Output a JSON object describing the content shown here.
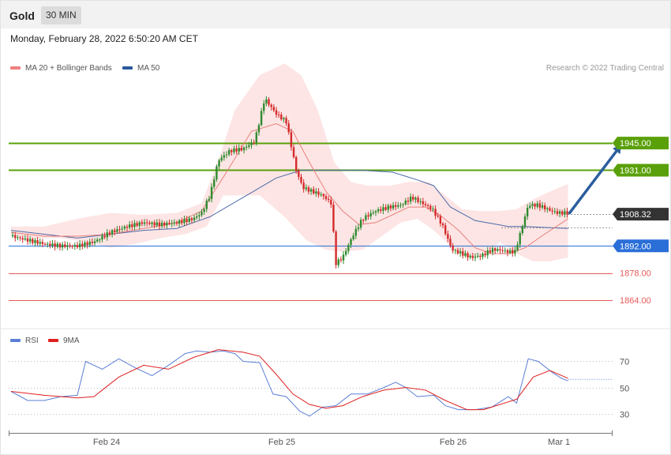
{
  "header": {
    "instrument": "Gold",
    "timeframe": "30 MIN"
  },
  "timestamp": "Monday, February 28, 2022 6:50:20 AM CET",
  "legend": {
    "ma20_label": "MA 20 + Bollinger Bands",
    "ma50_label": "MA 50",
    "rsi_label": "RSI",
    "rsi_ma_label": "9MA",
    "credit": "Research © 2022 Trading Central"
  },
  "colors": {
    "green_level": "#5aa00a",
    "blue_level": "#2a6fd8",
    "red_level": "#e85a5a",
    "price_tag": "#333333",
    "ma20": "#e8807a",
    "ma50": "#4a6aa8",
    "bands": "#fde2e2",
    "candle_up": "#2e8b2e",
    "candle_down": "#d42a2a",
    "rsi": "#5b7fd6",
    "rsi_ma": "#e02020",
    "arrow": "#2c5e9e"
  },
  "chart_data": [
    {
      "type": "candlestick",
      "title": "",
      "ylim": [
        1851,
        1978
      ],
      "x_ticks": [
        "Feb 24",
        "Feb 25",
        "Feb 26",
        "Mar 1"
      ],
      "levels": [
        {
          "label": "1945.00",
          "value": 1945.0,
          "kind": "resistance"
        },
        {
          "label": "1931.00",
          "value": 1931.0,
          "kind": "resistance"
        },
        {
          "label": "1908.32",
          "value": 1908.32,
          "kind": "last-price"
        },
        {
          "label": "1892.00",
          "value": 1892.0,
          "kind": "pivot"
        },
        {
          "label": "1878.00",
          "value": 1878.0,
          "kind": "support"
        },
        {
          "label": "1864.00",
          "value": 1864.0,
          "kind": "support"
        }
      ],
      "close_path": [
        [
          0,
          1897
        ],
        [
          10,
          1895
        ],
        [
          20,
          1893
        ],
        [
          30,
          1892
        ],
        [
          40,
          1892
        ],
        [
          50,
          1894
        ],
        [
          60,
          1899
        ],
        [
          70,
          1902
        ],
        [
          80,
          1904
        ],
        [
          90,
          1903
        ],
        [
          100,
          1904
        ],
        [
          110,
          1906
        ],
        [
          115,
          1909
        ],
        [
          120,
          1918
        ],
        [
          125,
          1936
        ],
        [
          132,
          1941
        ],
        [
          140,
          1942
        ],
        [
          147,
          1946
        ],
        [
          153,
          1968
        ],
        [
          160,
          1960
        ],
        [
          166,
          1956
        ],
        [
          172,
          1931
        ],
        [
          176,
          1922
        ],
        [
          182,
          1920
        ],
        [
          188,
          1918
        ],
        [
          193,
          1914
        ],
        [
          196,
          1883
        ],
        [
          200,
          1886
        ],
        [
          206,
          1897
        ],
        [
          212,
          1906
        ],
        [
          220,
          1910
        ],
        [
          228,
          1912
        ],
        [
          235,
          1913
        ],
        [
          242,
          1917
        ],
        [
          248,
          1914
        ],
        [
          254,
          1911
        ],
        [
          260,
          1903
        ],
        [
          266,
          1890
        ],
        [
          272,
          1888
        ],
        [
          278,
          1886
        ],
        [
          284,
          1887
        ],
        [
          290,
          1890
        ],
        [
          294,
          1890
        ],
        [
          300,
          1889
        ],
        [
          304,
          1889
        ],
        [
          312,
          1913
        ],
        [
          318,
          1913
        ],
        [
          326,
          1910
        ],
        [
          330,
          1909
        ],
        [
          336,
          1909
        ]
      ],
      "ma20_path": [
        [
          0,
          1899
        ],
        [
          20,
          1897
        ],
        [
          40,
          1897
        ],
        [
          60,
          1898
        ],
        [
          80,
          1901
        ],
        [
          100,
          1904
        ],
        [
          115,
          1910
        ],
        [
          130,
          1930
        ],
        [
          145,
          1951
        ],
        [
          160,
          1955
        ],
        [
          170,
          1951
        ],
        [
          180,
          1935
        ],
        [
          190,
          1920
        ],
        [
          200,
          1910
        ],
        [
          210,
          1903
        ],
        [
          220,
          1904
        ],
        [
          230,
          1908
        ],
        [
          240,
          1912
        ],
        [
          250,
          1912
        ],
        [
          260,
          1907
        ],
        [
          270,
          1900
        ],
        [
          280,
          1891
        ],
        [
          290,
          1888
        ],
        [
          300,
          1888
        ],
        [
          310,
          1891
        ],
        [
          320,
          1897
        ],
        [
          336,
          1906
        ]
      ],
      "ma50_path": [
        [
          0,
          1900
        ],
        [
          20,
          1898
        ],
        [
          40,
          1896
        ],
        [
          60,
          1898
        ],
        [
          80,
          1900
        ],
        [
          100,
          1901
        ],
        [
          120,
          1907
        ],
        [
          140,
          1917
        ],
        [
          160,
          1927
        ],
        [
          175,
          1931
        ],
        [
          190,
          1931
        ],
        [
          210,
          1931
        ],
        [
          230,
          1930
        ],
        [
          245,
          1926
        ],
        [
          255,
          1923
        ],
        [
          265,
          1912
        ],
        [
          280,
          1905
        ],
        [
          300,
          1902
        ],
        [
          310,
          1902
        ],
        [
          336,
          1901
        ]
      ],
      "bollinger_upper": [
        [
          0,
          1902
        ],
        [
          20,
          1902
        ],
        [
          40,
          1906
        ],
        [
          60,
          1909
        ],
        [
          80,
          1908
        ],
        [
          100,
          1909
        ],
        [
          115,
          1914
        ],
        [
          125,
          1936
        ],
        [
          135,
          1962
        ],
        [
          150,
          1980
        ],
        [
          165,
          1986
        ],
        [
          175,
          1980
        ],
        [
          185,
          1962
        ],
        [
          195,
          1935
        ],
        [
          205,
          1925
        ],
        [
          215,
          1923
        ],
        [
          228,
          1923
        ],
        [
          240,
          1925
        ],
        [
          252,
          1925
        ],
        [
          262,
          1918
        ],
        [
          272,
          1911
        ],
        [
          282,
          1910
        ],
        [
          295,
          1910
        ],
        [
          305,
          1911
        ],
        [
          315,
          1916
        ],
        [
          325,
          1920
        ],
        [
          336,
          1924
        ]
      ],
      "bollinger_lower": [
        [
          336,
          1886
        ],
        [
          325,
          1884
        ],
        [
          315,
          1884
        ],
        [
          305,
          1888
        ],
        [
          295,
          1894
        ],
        [
          285,
          1887
        ],
        [
          275,
          1886
        ],
        [
          265,
          1892
        ],
        [
          255,
          1900
        ],
        [
          245,
          1906
        ],
        [
          235,
          1904
        ],
        [
          222,
          1896
        ],
        [
          212,
          1890
        ],
        [
          200,
          1889
        ],
        [
          190,
          1890
        ],
        [
          178,
          1895
        ],
        [
          165,
          1907
        ],
        [
          150,
          1918
        ],
        [
          140,
          1918
        ],
        [
          128,
          1918
        ],
        [
          118,
          1902
        ],
        [
          105,
          1898
        ],
        [
          90,
          1896
        ],
        [
          75,
          1893
        ],
        [
          60,
          1891
        ],
        [
          45,
          1894
        ],
        [
          30,
          1896
        ],
        [
          15,
          1896
        ],
        [
          0,
          1897
        ]
      ],
      "forecast_arrow": {
        "from": [
          336,
          1909
        ],
        "to": [
          368,
          1944
        ]
      }
    },
    {
      "type": "line",
      "title": "",
      "ylim": [
        17,
        83
      ],
      "y_ticks": [
        70,
        50,
        30
      ],
      "series": [
        {
          "name": "RSI",
          "values": [
            [
              0,
              47
            ],
            [
              10,
              40
            ],
            [
              20,
              40
            ],
            [
              30,
              43
            ],
            [
              40,
              44
            ],
            [
              45,
              70
            ],
            [
              55,
              64
            ],
            [
              65,
              72
            ],
            [
              75,
              65
            ],
            [
              85,
              59
            ],
            [
              95,
              67
            ],
            [
              105,
              76
            ],
            [
              112,
              78
            ],
            [
              120,
              77
            ],
            [
              128,
              78
            ],
            [
              135,
              76
            ],
            [
              140,
              70
            ],
            [
              150,
              69
            ],
            [
              158,
              45
            ],
            [
              166,
              43
            ],
            [
              174,
              32
            ],
            [
              180,
              28
            ],
            [
              188,
              35
            ],
            [
              196,
              36
            ],
            [
              205,
              45
            ],
            [
              215,
              45
            ],
            [
              225,
              50
            ],
            [
              232,
              54
            ],
            [
              238,
              50
            ],
            [
              245,
              43
            ],
            [
              255,
              44
            ],
            [
              262,
              36
            ],
            [
              270,
              33
            ],
            [
              280,
              33
            ],
            [
              290,
              35
            ],
            [
              300,
              43
            ],
            [
              305,
              38
            ],
            [
              312,
              72
            ],
            [
              318,
              70
            ],
            [
              326,
              62
            ],
            [
              332,
              57
            ],
            [
              336,
              55
            ]
          ]
        },
        {
          "name": "9MA",
          "values": [
            [
              0,
              47
            ],
            [
              20,
              44
            ],
            [
              40,
              42
            ],
            [
              50,
              43
            ],
            [
              65,
              58
            ],
            [
              80,
              67
            ],
            [
              95,
              64
            ],
            [
              110,
              73
            ],
            [
              125,
              79
            ],
            [
              140,
              77
            ],
            [
              150,
              74
            ],
            [
              160,
              60
            ],
            [
              170,
              45
            ],
            [
              180,
              37
            ],
            [
              190,
              34
            ],
            [
              200,
              36
            ],
            [
              212,
              43
            ],
            [
              225,
              48
            ],
            [
              238,
              50
            ],
            [
              250,
              48
            ],
            [
              262,
              40
            ],
            [
              275,
              33
            ],
            [
              285,
              33
            ],
            [
              295,
              37
            ],
            [
              305,
              41
            ],
            [
              315,
              58
            ],
            [
              325,
              63
            ],
            [
              336,
              57
            ]
          ]
        }
      ]
    }
  ]
}
